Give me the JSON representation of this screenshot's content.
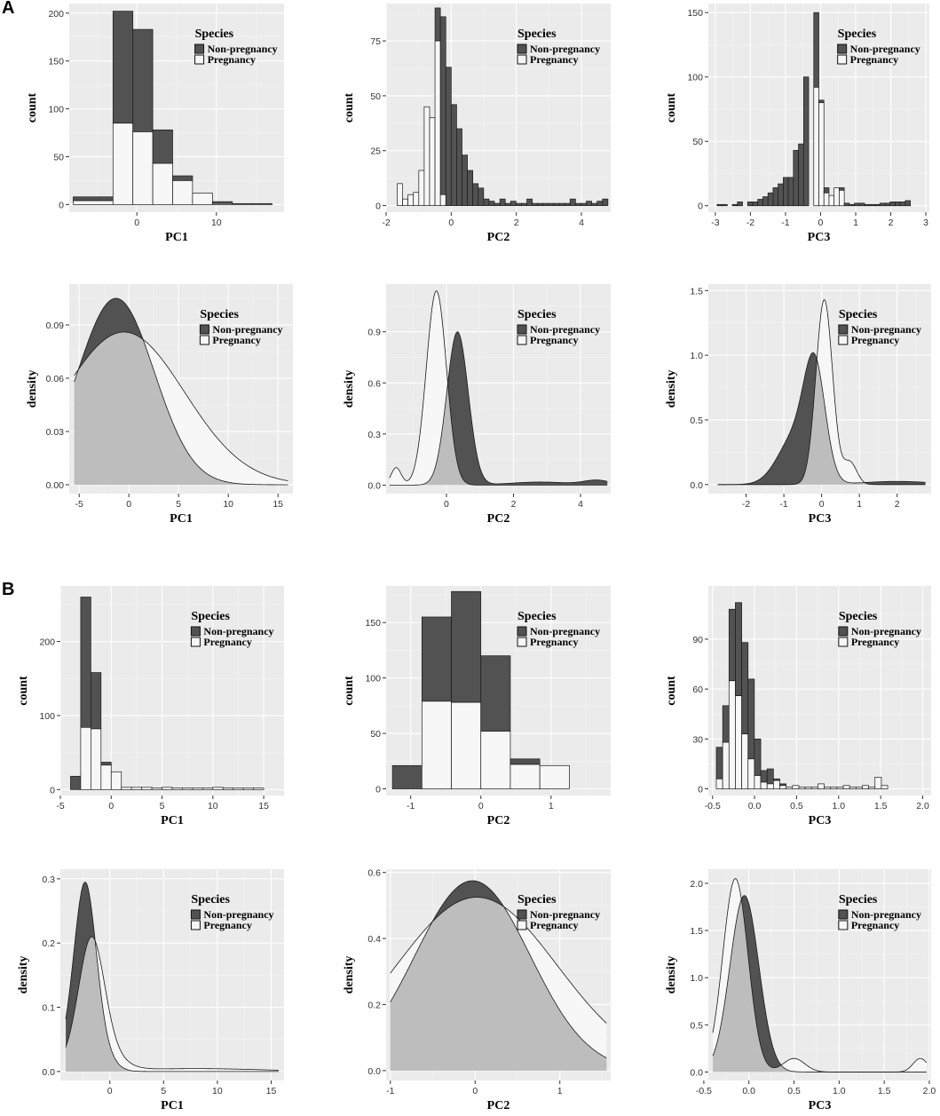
{
  "labels": {
    "section_a": "A",
    "section_b": "B"
  },
  "colors": {
    "non_pregnancy": "#525252",
    "pregnancy": "#f7f7f7",
    "overlap": "#bdbdbd",
    "panel_bg": "#ebebeb"
  },
  "chart_data": [
    {
      "id": "A-hist-PC1",
      "type": "bar",
      "stacked": true,
      "xlabel": "PC1",
      "ylabel": "count",
      "xlim": [
        -8.5,
        18.5
      ],
      "ylim": [
        -8,
        210
      ],
      "xticks": [
        0,
        10
      ],
      "yticks": [
        0,
        50,
        100,
        150,
        200
      ],
      "legend": {
        "title": "Species",
        "items": [
          "Non-pregnancy",
          "Pregnancy"
        ]
      },
      "bin_edges": [
        -8,
        -3,
        2,
        7,
        12,
        17
      ],
      "bins": [
        {
          "x0": -8,
          "x1": -3,
          "pregnancy": 4,
          "total": 8
        },
        {
          "x0": -3,
          "x1": -0.5,
          "pregnancy": 85,
          "total": 202
        },
        {
          "x0": -0.5,
          "x1": 2,
          "pregnancy": 76,
          "total": 183
        },
        {
          "x0": 2,
          "x1": 4.5,
          "pregnancy": 43,
          "total": 78
        },
        {
          "x0": 4.5,
          "x1": 7,
          "pregnancy": 25,
          "total": 30
        },
        {
          "x0": 7,
          "x1": 9.5,
          "pregnancy": 12,
          "total": 12
        },
        {
          "x0": 9.5,
          "x1": 12,
          "pregnancy": 1,
          "total": 3
        },
        {
          "x0": 12,
          "x1": 14.5,
          "pregnancy": 0,
          "total": 1
        },
        {
          "x0": 14.5,
          "x1": 17,
          "pregnancy": 0,
          "total": 1
        }
      ]
    },
    {
      "id": "A-hist-PC2",
      "type": "bar",
      "stacked": true,
      "xlabel": "PC2",
      "ylabel": "count",
      "xlim": [
        -2.0,
        4.9
      ],
      "ylim": [
        -3,
        92
      ],
      "xticks": [
        -2,
        0,
        2,
        4
      ],
      "yticks": [
        0,
        25,
        50,
        75
      ],
      "legend": {
        "title": "Species",
        "items": [
          "Non-pregnancy",
          "Pregnancy"
        ]
      },
      "binwidth": 0.166,
      "x_start": -1.66,
      "bins_pregnancy": [
        10,
        3,
        5,
        6,
        16,
        45,
        40,
        75,
        5,
        0,
        0,
        0,
        0,
        0,
        0,
        0,
        0,
        0,
        0,
        0,
        0,
        0,
        0,
        0,
        0,
        0,
        0,
        0,
        0,
        0,
        0,
        0,
        0,
        0,
        0,
        0,
        0,
        0,
        0
      ],
      "bins_total": [
        10,
        3,
        5,
        6,
        16,
        45,
        40,
        90,
        86,
        63,
        46,
        35,
        23,
        16,
        10,
        8,
        3,
        2,
        1,
        3,
        1,
        2,
        1,
        1,
        3,
        1,
        1,
        1,
        1,
        1,
        1,
        1,
        3,
        1,
        1,
        2,
        1,
        2,
        3
      ]
    },
    {
      "id": "A-hist-PC3",
      "type": "bar",
      "stacked": true,
      "xlabel": "PC3",
      "ylabel": "count",
      "xlim": [
        -3.2,
        3.1
      ],
      "ylim": [
        -5,
        157
      ],
      "xticks": [
        -3,
        -2,
        -1,
        0,
        1,
        2,
        3
      ],
      "yticks": [
        0,
        50,
        100,
        150
      ],
      "legend": {
        "title": "Species",
        "items": [
          "Non-pregnancy",
          "Pregnancy"
        ]
      },
      "binwidth": 0.145,
      "x_start": -2.95,
      "bins_pregnancy": [
        0,
        0,
        0,
        0,
        0,
        0,
        0,
        0,
        0,
        0,
        0,
        0,
        0,
        0,
        0,
        0,
        0,
        0,
        0,
        92,
        80,
        10,
        8,
        14,
        12,
        0,
        0,
        0,
        0,
        0,
        0,
        0,
        0,
        0,
        0,
        0,
        0,
        0,
        0,
        0,
        0
      ],
      "bins_total": [
        1,
        1,
        0,
        1,
        3,
        0,
        3,
        3,
        5,
        7,
        10,
        14,
        17,
        22,
        22,
        43,
        48,
        100,
        0,
        150,
        82,
        14,
        8,
        14,
        14,
        2,
        1,
        2,
        2,
        1,
        1,
        1,
        2,
        2,
        3,
        3,
        3,
        4,
        0,
        0,
        0
      ]
    },
    {
      "id": "A-dens-PC1",
      "type": "area",
      "xlabel": "PC1",
      "ylabel": "density",
      "xlim": [
        -6,
        16.5
      ],
      "ylim": [
        -0.005,
        0.113
      ],
      "xticks": [
        -5,
        0,
        5,
        10,
        15
      ],
      "yticks": [
        0.0,
        0.03,
        0.06,
        0.09
      ],
      "ytick_labels": [
        "0.00",
        "0.03",
        "0.06",
        "0.09"
      ],
      "legend": {
        "title": "Species",
        "items": [
          "Non-pregnancy",
          "Pregnancy"
        ]
      },
      "x_range": [
        -5.5,
        16
      ],
      "non_pregnancy": {
        "components": [
          [
            1,
            -1.3,
            3.85
          ]
        ],
        "peak": 0.105
      },
      "pregnancy": {
        "components": [
          [
            1,
            -0.5,
            6.1
          ]
        ],
        "peak": 0.086
      }
    },
    {
      "id": "A-dens-PC2",
      "type": "area",
      "xlabel": "PC2",
      "ylabel": "density",
      "xlim": [
        -1.8,
        4.9
      ],
      "ylim": [
        -0.05,
        1.18
      ],
      "xticks": [
        0,
        2,
        4
      ],
      "yticks": [
        0.0,
        0.3,
        0.6,
        0.9
      ],
      "ytick_labels": [
        "0.0",
        "0.3",
        "0.6",
        "0.9"
      ],
      "legend": {
        "title": "Species",
        "items": [
          "Non-pregnancy",
          "Pregnancy"
        ]
      },
      "x_range": [
        -1.7,
        4.8
      ],
      "non_pregnancy": {
        "components": [
          [
            1,
            0.33,
            0.32
          ],
          [
            0.02,
            2.8,
            0.9
          ],
          [
            0.03,
            4.5,
            0.4
          ]
        ],
        "peak": 0.9
      },
      "pregnancy": {
        "components": [
          [
            1,
            -0.3,
            0.3
          ],
          [
            0.09,
            -1.5,
            0.15
          ]
        ],
        "peak": 1.14
      }
    },
    {
      "id": "A-dens-PC3",
      "type": "area",
      "xlabel": "PC3",
      "ylabel": "density",
      "xlim": [
        -3.0,
        2.9
      ],
      "ylim": [
        -0.07,
        1.55
      ],
      "xticks": [
        -2,
        -1,
        0,
        1,
        2
      ],
      "yticks": [
        0.0,
        0.5,
        1.0,
        1.5
      ],
      "ytick_labels": [
        "0.0",
        "0.5",
        "1.0",
        "1.5"
      ],
      "legend": {
        "title": "Species",
        "items": [
          "Non-pregnancy",
          "Pregnancy"
        ]
      },
      "x_range": [
        -2.75,
        2.75
      ],
      "non_pregnancy": {
        "components": [
          [
            1,
            -0.18,
            0.28
          ],
          [
            0.45,
            -0.7,
            0.45
          ],
          [
            0.03,
            2.0,
            0.9
          ]
        ],
        "peak": 1.02
      },
      "pregnancy": {
        "components": [
          [
            1,
            0.07,
            0.22
          ],
          [
            0.12,
            0.75,
            0.18
          ]
        ],
        "peak": 1.43
      }
    },
    {
      "id": "B-hist-PC1",
      "type": "bar",
      "stacked": true,
      "xlabel": "PC1",
      "ylabel": "count",
      "xlim": [
        -5,
        17
      ],
      "ylim": [
        -8,
        275
      ],
      "xticks": [
        -5,
        0,
        5,
        10,
        15
      ],
      "yticks": [
        0,
        100,
        200
      ],
      "legend": {
        "title": "Species",
        "items": [
          "Non-pregnancy",
          "Pregnancy"
        ]
      },
      "binwidth": 1.0,
      "x_start": -4.0,
      "bins_pregnancy": [
        0,
        84,
        82,
        33,
        24,
        3,
        3,
        3,
        2,
        3,
        2,
        2,
        2,
        2,
        3,
        2,
        2,
        2,
        2
      ],
      "bins_total": [
        18,
        260,
        158,
        37,
        24,
        3,
        3,
        3,
        2,
        3,
        2,
        2,
        2,
        2,
        3,
        2,
        2,
        2,
        2
      ]
    },
    {
      "id": "B-hist-PC2",
      "type": "bar",
      "stacked": true,
      "xlabel": "PC2",
      "ylabel": "count",
      "xlim": [
        -1.35,
        1.85
      ],
      "ylim": [
        -6,
        183
      ],
      "xticks": [
        -1,
        0,
        1
      ],
      "yticks": [
        0,
        50,
        100,
        150
      ],
      "legend": {
        "title": "Species",
        "items": [
          "Non-pregnancy",
          "Pregnancy"
        ]
      },
      "binwidth": 0.42,
      "x_start": -1.26,
      "bins_pregnancy": [
        0,
        79,
        78,
        52,
        22,
        21
      ],
      "bins_total": [
        21,
        155,
        178,
        120,
        27,
        21
      ]
    },
    {
      "id": "B-hist-PC3",
      "type": "bar",
      "stacked": true,
      "xlabel": "PC3",
      "ylabel": "count",
      "xlim": [
        -0.55,
        2.1
      ],
      "ylim": [
        -4,
        122
      ],
      "xticks": [
        -0.5,
        0.0,
        0.5,
        1.0,
        1.5,
        2.0
      ],
      "xtick_labels": [
        "-0.5",
        "0.0",
        "0.5",
        "1.0",
        "1.5",
        "2.0"
      ],
      "yticks": [
        0,
        30,
        60,
        90
      ],
      "legend": {
        "title": "Species",
        "items": [
          "Non-pregnancy",
          "Pregnancy"
        ]
      },
      "binwidth": 0.0755,
      "x_start": -0.455,
      "bins_pregnancy": [
        6,
        28,
        65,
        56,
        33,
        18,
        8,
        4,
        3,
        5,
        2,
        1,
        2,
        1,
        1,
        1,
        3,
        1,
        1,
        1,
        2,
        1,
        1,
        2,
        1,
        7,
        2
      ],
      "bins_total": [
        25,
        50,
        108,
        112,
        88,
        66,
        30,
        11,
        12,
        6,
        3,
        1,
        2,
        1,
        1,
        1,
        3,
        1,
        1,
        1,
        2,
        1,
        1,
        2,
        1,
        7,
        2
      ]
    },
    {
      "id": "B-dens-PC1",
      "type": "area",
      "xlabel": "PC1",
      "ylabel": "density",
      "xlim": [
        -4.6,
        16.2
      ],
      "ylim": [
        -0.014,
        0.315
      ],
      "xticks": [
        0,
        5,
        10,
        15
      ],
      "yticks": [
        0.0,
        0.1,
        0.2,
        0.3
      ],
      "ytick_labels": [
        "0.0",
        "0.1",
        "0.2",
        "0.3"
      ],
      "legend": {
        "title": "Species",
        "items": [
          "Non-pregnancy",
          "Pregnancy"
        ]
      },
      "x_range": [
        -4.1,
        15.7
      ],
      "non_pregnancy": {
        "components": [
          [
            1,
            -2.3,
            0.95
          ],
          [
            0.6,
            -2.3,
            1.45
          ]
        ],
        "peak": 0.295
      },
      "pregnancy": {
        "components": [
          [
            1,
            -1.7,
            1.15
          ],
          [
            0.3,
            -1.5,
            1.9
          ],
          [
            0.028,
            8,
            6
          ]
        ],
        "peak": 0.21
      }
    },
    {
      "id": "B-dens-PC2",
      "type": "area",
      "xlabel": "PC2",
      "ylabel": "density",
      "xlim": [
        -1.05,
        1.6
      ],
      "ylim": [
        -0.03,
        0.61
      ],
      "xticks": [
        -1,
        0,
        1
      ],
      "yticks": [
        0.0,
        0.2,
        0.4,
        0.6
      ],
      "ytick_labels": [
        "0.0",
        "0.2",
        "0.4",
        "0.6"
      ],
      "legend": {
        "title": "Species",
        "items": [
          "Non-pregnancy",
          "Pregnancy"
        ]
      },
      "x_range": [
        -1.0,
        1.55
      ],
      "non_pregnancy": {
        "components": [
          [
            1,
            -0.03,
            0.68
          ]
        ],
        "peak": 0.575
      },
      "pregnancy": {
        "components": [
          [
            1,
            0.02,
            0.95
          ]
        ],
        "peak": 0.525
      }
    },
    {
      "id": "B-dens-PC3",
      "type": "area",
      "xlabel": "PC3",
      "ylabel": "density",
      "xlim": [
        -0.45,
        2.02
      ],
      "ylim": [
        -0.09,
        2.15
      ],
      "xticks": [
        -0.5,
        0.0,
        0.5,
        1.0,
        1.5,
        2.0
      ],
      "xtick_labels": [
        "-0.5",
        "0.0",
        "0.5",
        "1.0",
        "1.5",
        "2.0"
      ],
      "yticks": [
        0.0,
        0.5,
        1.0,
        1.5,
        2.0
      ],
      "ytick_labels": [
        "0.0",
        "0.5",
        "1.0",
        "1.5",
        "2.0"
      ],
      "legend": {
        "title": "Species",
        "items": [
          "Non-pregnancy",
          "Pregnancy"
        ]
      },
      "x_range": [
        -0.4,
        1.97
      ],
      "non_pregnancy": {
        "components": [
          [
            1,
            -0.05,
            0.16
          ]
        ],
        "peak": 1.87
      },
      "pregnancy": {
        "components": [
          [
            1,
            -0.15,
            0.14
          ],
          [
            0.07,
            0.5,
            0.12
          ],
          [
            0.07,
            1.9,
            0.08
          ]
        ],
        "peak": 2.05
      }
    }
  ]
}
